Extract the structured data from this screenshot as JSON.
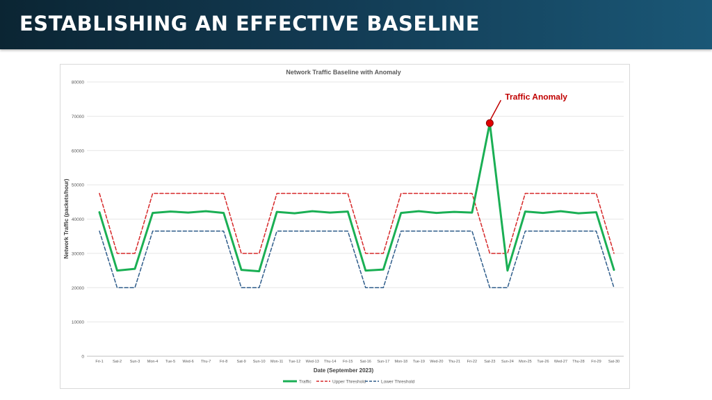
{
  "slide": {
    "title": "ESTABLISHING AN EFFECTIVE BASELINE"
  },
  "colors": {
    "banner": "#123a52",
    "traffic": "#1aaf54",
    "upper": "#d62728",
    "lower": "#2e5c8a",
    "anomaly_label": "#c00000",
    "grid": "#e6e6e6"
  },
  "chart_data": {
    "type": "line",
    "title": "Network Traffic Baseline with Anomaly",
    "xlabel": "Date (September 2023)",
    "ylabel": "Network Traffic (packets/hour)",
    "ylim": [
      0,
      80000
    ],
    "yticks": [
      0,
      10000,
      20000,
      30000,
      40000,
      50000,
      60000,
      70000,
      80000
    ],
    "grid": true,
    "legend_position": "bottom",
    "categories": [
      "Fri-1",
      "Sat-2",
      "Sun-3",
      "Mon-4",
      "Tue-5",
      "Wed-6",
      "Thu-7",
      "Fri-8",
      "Sat-9",
      "Sun-10",
      "Mon-11",
      "Tue-12",
      "Wed-13",
      "Thu-14",
      "Fri-15",
      "Sat-16",
      "Sun-17",
      "Mon-18",
      "Tue-19",
      "Wed-20",
      "Thu-21",
      "Fri-22",
      "Sat-23",
      "Sun-24",
      "Mon-25",
      "Tue-26",
      "Wed-27",
      "Thu-28",
      "Fri-29",
      "Sat-30"
    ],
    "series": [
      {
        "name": "Traffic",
        "style": "solid",
        "color": "#1aaf54",
        "values": [
          42000,
          25000,
          25500,
          41800,
          42200,
          41900,
          42300,
          41800,
          25200,
          24800,
          42100,
          41700,
          42300,
          41900,
          42200,
          25000,
          25300,
          41800,
          42300,
          41800,
          42100,
          41900,
          68000,
          25000,
          42200,
          41800,
          42300,
          41700,
          42000,
          25200
        ]
      },
      {
        "name": "Upper Threshold",
        "style": "dashed",
        "color": "#d62728",
        "values": [
          47500,
          30000,
          30000,
          47500,
          47500,
          47500,
          47500,
          47500,
          30000,
          30000,
          47500,
          47500,
          47500,
          47500,
          47500,
          30000,
          30000,
          47500,
          47500,
          47500,
          47500,
          47500,
          30000,
          30000,
          47500,
          47500,
          47500,
          47500,
          47500,
          30000
        ]
      },
      {
        "name": "Lower Threshold",
        "style": "dashed",
        "color": "#2e5c8a",
        "values": [
          36500,
          20000,
          20000,
          36500,
          36500,
          36500,
          36500,
          36500,
          20000,
          20000,
          36500,
          36500,
          36500,
          36500,
          36500,
          20000,
          20000,
          36500,
          36500,
          36500,
          36500,
          36500,
          20000,
          20000,
          36500,
          36500,
          36500,
          36500,
          36500,
          20000
        ]
      }
    ],
    "annotations": [
      {
        "text": "Traffic Anomaly",
        "category": "Sat-23",
        "value": 68000
      }
    ]
  }
}
